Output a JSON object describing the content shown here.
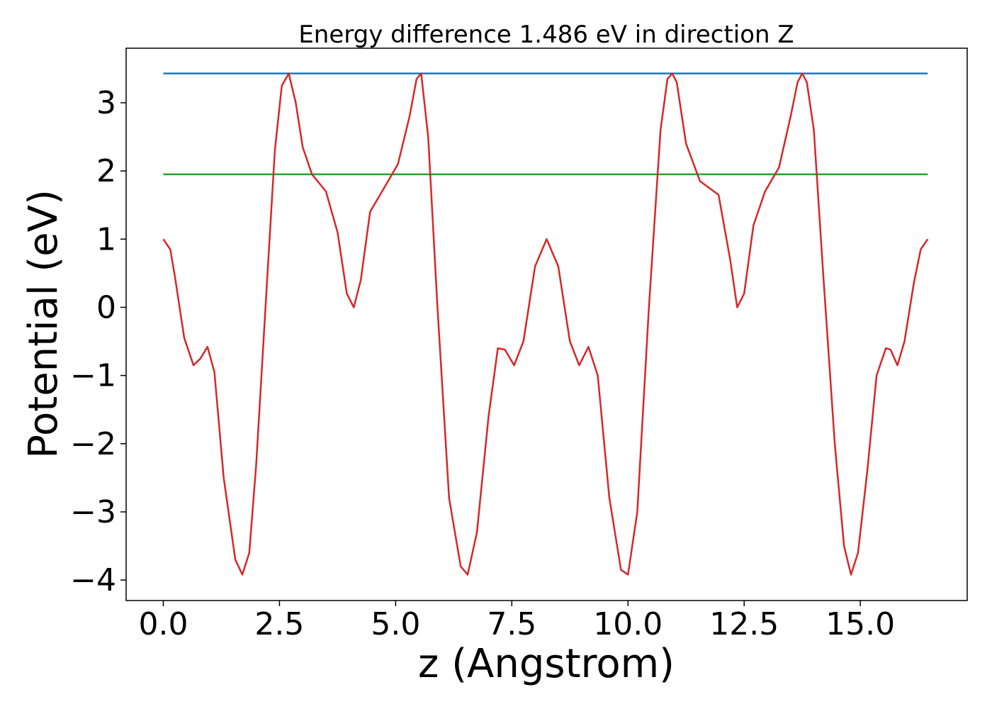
{
  "chart_data": {
    "type": "line",
    "title": "Energy difference 1.486 eV in direction Z",
    "xlabel": "z (Angstrom)",
    "ylabel": "Potential (eV)",
    "xlim": [
      -0.8,
      17.3
    ],
    "ylim": [
      -4.3,
      3.8
    ],
    "grid": false,
    "x_ticks": [
      0.0,
      2.5,
      5.0,
      7.5,
      10.0,
      12.5,
      15.0
    ],
    "x_tick_labels": [
      "0.0",
      "2.5",
      "5.0",
      "7.5",
      "10.0",
      "12.5",
      "15.0"
    ],
    "y_ticks": [
      3,
      2,
      1,
      0,
      -1,
      -2,
      -3,
      -4
    ],
    "y_tick_labels": [
      "3",
      "2",
      "1",
      "0",
      "−1",
      "−2",
      "−3",
      "−4"
    ],
    "series": [
      {
        "color": "#1f77b4",
        "x": [
          0.0,
          16.45
        ],
        "y": [
          3.43,
          3.43
        ]
      },
      {
        "color": "#2ca02c",
        "x": [
          0.0,
          16.45
        ],
        "y": [
          1.95,
          1.95
        ]
      },
      {
        "color": "#d62728",
        "x": [
          0.0,
          0.15,
          0.25,
          0.45,
          0.65,
          0.8,
          0.95,
          1.1,
          1.3,
          1.55,
          1.7,
          1.85,
          2.0,
          2.2,
          2.4,
          2.55,
          2.7,
          2.85,
          3.0,
          3.2,
          3.5,
          3.75,
          3.95,
          4.1,
          4.25,
          4.45,
          4.75,
          5.05,
          5.3,
          5.45,
          5.55,
          5.7,
          5.9,
          6.15,
          6.4,
          6.55,
          6.75,
          7.0,
          7.2,
          7.35,
          7.55,
          7.75,
          8.0,
          8.25,
          8.5,
          8.75,
          8.95,
          9.15,
          9.35,
          9.6,
          9.85,
          10.0,
          10.2,
          10.45,
          10.7,
          10.85,
          10.95,
          11.05,
          11.25,
          11.55,
          11.95,
          12.2,
          12.35,
          12.5,
          12.7,
          12.95,
          13.25,
          13.5,
          13.65,
          13.75,
          13.85,
          14.0,
          14.2,
          14.45,
          14.65,
          14.8,
          14.95,
          15.15,
          15.35,
          15.55,
          15.65,
          15.8,
          15.95,
          16.15,
          16.3,
          16.45
        ],
        "y": [
          1.0,
          0.85,
          0.45,
          -0.45,
          -0.85,
          -0.75,
          -0.58,
          -0.95,
          -2.5,
          -3.7,
          -3.92,
          -3.6,
          -2.3,
          0.0,
          2.3,
          3.25,
          3.43,
          3.0,
          2.35,
          1.95,
          1.7,
          1.1,
          0.2,
          0.0,
          0.4,
          1.4,
          1.75,
          2.1,
          2.8,
          3.35,
          3.43,
          2.5,
          0.0,
          -2.8,
          -3.8,
          -3.92,
          -3.3,
          -1.6,
          -0.6,
          -0.62,
          -0.85,
          -0.5,
          0.6,
          1.0,
          0.6,
          -0.5,
          -0.85,
          -0.58,
          -1.0,
          -2.8,
          -3.85,
          -3.92,
          -3.0,
          0.0,
          2.6,
          3.35,
          3.43,
          3.3,
          2.4,
          1.85,
          1.65,
          0.7,
          0.0,
          0.2,
          1.2,
          1.7,
          2.05,
          2.8,
          3.3,
          3.43,
          3.3,
          2.6,
          0.5,
          -2.0,
          -3.5,
          -3.92,
          -3.6,
          -2.4,
          -1.0,
          -0.6,
          -0.62,
          -0.85,
          -0.5,
          0.35,
          0.85,
          1.0
        ]
      }
    ]
  }
}
